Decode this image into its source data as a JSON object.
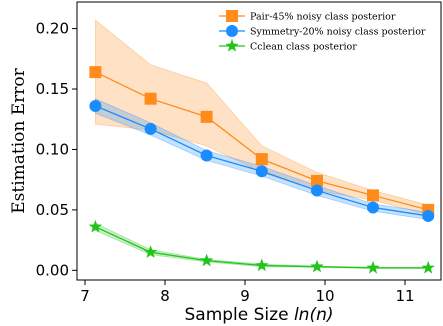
{
  "chart_data": {
    "type": "line",
    "title": "",
    "xlabel": "Sample Size ln(n)",
    "xlabel_parts": [
      "Sample Size ",
      "ln(n)"
    ],
    "ylabel": "Estimation Error",
    "xlim": [
      6.9,
      11.45
    ],
    "ylim": [
      -0.008,
      0.222
    ],
    "xticks": [
      7,
      8,
      9,
      10,
      11
    ],
    "yticks": [
      0.0,
      0.05,
      0.1,
      0.15,
      0.2
    ],
    "xtick_labels": [
      "7",
      "8",
      "9",
      "10",
      "11"
    ],
    "ytick_labels": [
      "0.00",
      "0.05",
      "0.10",
      "0.15",
      "0.20"
    ],
    "grid": false,
    "legend_position": "top-right",
    "x": [
      7.13,
      7.82,
      8.52,
      9.21,
      9.9,
      10.6,
      11.29
    ],
    "series": [
      {
        "name": "Pair-45% noisy class posterior",
        "color": "#ff8c1a",
        "marker": "square",
        "values": [
          0.164,
          0.142,
          0.127,
          0.092,
          0.074,
          0.062,
          0.05
        ],
        "upper": [
          0.207,
          0.17,
          0.155,
          0.103,
          0.081,
          0.066,
          0.054
        ],
        "lower": [
          0.121,
          0.116,
          0.103,
          0.081,
          0.066,
          0.058,
          0.046
        ]
      },
      {
        "name": "Symmetry-20% noisy class posterior",
        "color": "#1a8cff",
        "marker": "circle",
        "values": [
          0.136,
          0.117,
          0.095,
          0.082,
          0.066,
          0.052,
          0.045
        ],
        "upper": [
          0.142,
          0.122,
          0.099,
          0.086,
          0.07,
          0.055,
          0.048
        ],
        "lower": [
          0.13,
          0.112,
          0.091,
          0.078,
          0.062,
          0.049,
          0.042
        ]
      },
      {
        "name": "Cclean class posterior",
        "color": "#22c41c",
        "marker": "star",
        "values": [
          0.036,
          0.015,
          0.008,
          0.004,
          0.003,
          0.002,
          0.002
        ],
        "upper": [
          0.039,
          0.017,
          0.009,
          0.005,
          0.0035,
          0.0025,
          0.0025
        ],
        "lower": [
          0.033,
          0.013,
          0.007,
          0.003,
          0.0025,
          0.0015,
          0.0015
        ]
      }
    ]
  }
}
